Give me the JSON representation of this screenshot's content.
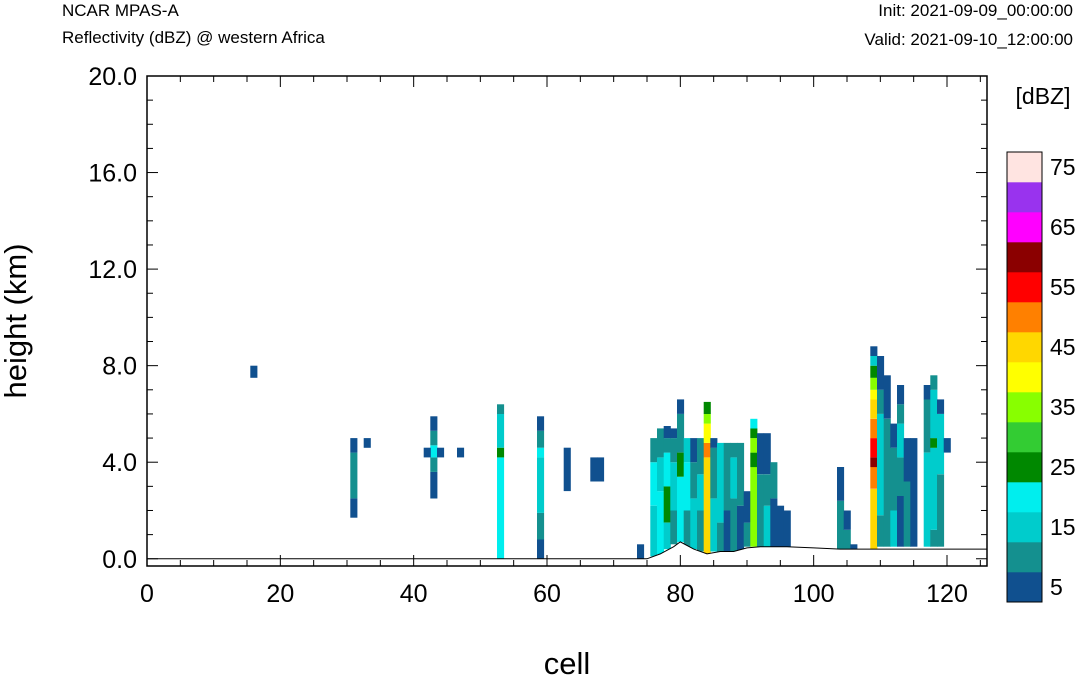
{
  "header": {
    "left_line1": "NCAR MPAS-A",
    "left_line2": "Reflectivity (dBZ) @ western Africa",
    "right_line1": "Init: 2021-09-09_00:00:00",
    "right_line2": "Valid: 2021-09-10_12:00:00"
  },
  "chart_data": {
    "type": "heatmap",
    "title": "Reflectivity (dBZ) @ western Africa",
    "xlabel": "cell",
    "ylabel": "height (km)",
    "xlim": [
      0,
      126
    ],
    "ylim": [
      -0.3,
      20
    ],
    "x_ticks": [
      "0",
      "20",
      "40",
      "60",
      "80",
      "100",
      "120"
    ],
    "x_tick_values": [
      0,
      20,
      40,
      60,
      80,
      100,
      120
    ],
    "y_ticks": [
      "0.0",
      "4.0",
      "8.0",
      "12.0",
      "16.0",
      "20.0"
    ],
    "y_tick_values": [
      0,
      4,
      8,
      12,
      16,
      20
    ],
    "colorbar": {
      "title": "[dBZ]",
      "levels": [
        5,
        10,
        15,
        20,
        25,
        30,
        35,
        40,
        45,
        50,
        55,
        60,
        65,
        70,
        75
      ],
      "labels": [
        "5",
        "15",
        "25",
        "35",
        "45",
        "55",
        "65",
        "75"
      ],
      "colors": [
        "#10508f",
        "#14908f",
        "#00cccc",
        "#00eeee",
        "#008800",
        "#33cc33",
        "#88ff00",
        "#ffff00",
        "#ffd700",
        "#ff8000",
        "#ff0000",
        "#8b0000",
        "#ff00ff",
        "#9933ee",
        "#ffe4e1"
      ]
    },
    "terrain": [
      [
        0,
        0
      ],
      [
        75,
        0
      ],
      [
        77,
        0.2
      ],
      [
        79,
        0.5
      ],
      [
        80,
        0.7
      ],
      [
        82,
        0.4
      ],
      [
        84,
        0.2
      ],
      [
        86,
        0.3
      ],
      [
        88,
        0.3
      ],
      [
        90,
        0.45
      ],
      [
        92,
        0.5
      ],
      [
        96,
        0.5
      ],
      [
        100,
        0.45
      ],
      [
        104,
        0.4
      ],
      [
        108,
        0.4
      ],
      [
        112,
        0.4
      ],
      [
        116,
        0.4
      ],
      [
        120,
        0.4
      ],
      [
        126,
        0.4
      ]
    ],
    "cells": [
      [
        16,
        7.5,
        8.0,
        5
      ],
      [
        31,
        1.7,
        2.5,
        5
      ],
      [
        31,
        2.5,
        3.2,
        10
      ],
      [
        31,
        3.2,
        4.4,
        10
      ],
      [
        31,
        4.4,
        5.0,
        5
      ],
      [
        33,
        4.6,
        5.0,
        5
      ],
      [
        43,
        2.5,
        3.6,
        5
      ],
      [
        43,
        3.6,
        4.2,
        10
      ],
      [
        43,
        4.2,
        4.7,
        20
      ],
      [
        43,
        4.7,
        5.3,
        10
      ],
      [
        43,
        5.3,
        5.9,
        5
      ],
      [
        42,
        4.2,
        4.6,
        5
      ],
      [
        44,
        4.2,
        4.6,
        5
      ],
      [
        47,
        4.2,
        4.6,
        5
      ],
      [
        53,
        0.0,
        4.2,
        20
      ],
      [
        53,
        4.2,
        4.6,
        25
      ],
      [
        53,
        4.6,
        6.0,
        15
      ],
      [
        53,
        6.0,
        6.4,
        10
      ],
      [
        59,
        0.0,
        0.8,
        5
      ],
      [
        59,
        0.8,
        1.9,
        10
      ],
      [
        59,
        1.9,
        4.2,
        15
      ],
      [
        59,
        4.2,
        4.6,
        20
      ],
      [
        59,
        4.6,
        5.3,
        10
      ],
      [
        59,
        5.3,
        5.9,
        5
      ],
      [
        63,
        2.8,
        4.6,
        5
      ],
      [
        67,
        3.2,
        4.2,
        5
      ],
      [
        68,
        3.2,
        4.2,
        5
      ],
      [
        74,
        0.0,
        0.6,
        5
      ],
      [
        76,
        0.1,
        2.2,
        15
      ],
      [
        76,
        2.2,
        4.0,
        20
      ],
      [
        76,
        4.0,
        5.0,
        10
      ],
      [
        77,
        0.2,
        2.8,
        20
      ],
      [
        77,
        2.8,
        4.2,
        15
      ],
      [
        77,
        4.2,
        5.4,
        10
      ],
      [
        78,
        0.4,
        1.5,
        15
      ],
      [
        78,
        1.5,
        3.0,
        25
      ],
      [
        78,
        3.0,
        4.4,
        20
      ],
      [
        78,
        4.4,
        5.0,
        10
      ],
      [
        78,
        5.0,
        5.5,
        5
      ],
      [
        79,
        0.6,
        2.0,
        10
      ],
      [
        79,
        2.0,
        4.0,
        15
      ],
      [
        79,
        4.0,
        5.0,
        10
      ],
      [
        79,
        5.0,
        5.4,
        5
      ],
      [
        80,
        0.7,
        3.4,
        20
      ],
      [
        80,
        3.4,
        4.4,
        25
      ],
      [
        80,
        4.4,
        6.0,
        10
      ],
      [
        80,
        6.0,
        6.6,
        5
      ],
      [
        81,
        0.5,
        2.0,
        10
      ],
      [
        81,
        2.0,
        4.0,
        20
      ],
      [
        81,
        4.0,
        5.0,
        15
      ],
      [
        82,
        0.4,
        2.5,
        15
      ],
      [
        82,
        2.5,
        4.0,
        10
      ],
      [
        82,
        4.0,
        5.0,
        5
      ],
      [
        83,
        0.3,
        2.0,
        10
      ],
      [
        83,
        2.0,
        3.5,
        15
      ],
      [
        83,
        3.5,
        5.0,
        10
      ],
      [
        84,
        0.2,
        4.2,
        45
      ],
      [
        84,
        4.2,
        4.8,
        50
      ],
      [
        84,
        4.8,
        5.6,
        40
      ],
      [
        84,
        5.6,
        6.0,
        35
      ],
      [
        84,
        6.0,
        6.5,
        25
      ],
      [
        85,
        0.3,
        2.5,
        15
      ],
      [
        85,
        2.5,
        4.6,
        10
      ],
      [
        85,
        4.6,
        5.0,
        5
      ],
      [
        86,
        0.3,
        1.5,
        10
      ],
      [
        86,
        1.5,
        4.8,
        15
      ],
      [
        87,
        0.3,
        2.0,
        5
      ],
      [
        87,
        2.0,
        4.8,
        10
      ],
      [
        88,
        0.3,
        2.5,
        10
      ],
      [
        88,
        2.5,
        4.2,
        15
      ],
      [
        88,
        4.2,
        4.8,
        10
      ],
      [
        89,
        0.3,
        2.2,
        5
      ],
      [
        89,
        2.2,
        4.8,
        10
      ],
      [
        90,
        0.5,
        1.5,
        10
      ],
      [
        90,
        1.5,
        2.8,
        5
      ],
      [
        91,
        0.5,
        3.8,
        35
      ],
      [
        91,
        3.8,
        4.4,
        25
      ],
      [
        91,
        4.4,
        5.0,
        35
      ],
      [
        91,
        5.0,
        5.4,
        25
      ],
      [
        91,
        5.4,
        5.8,
        20
      ],
      [
        92,
        0.5,
        3.5,
        10
      ],
      [
        92,
        3.5,
        5.2,
        5
      ],
      [
        93,
        0.5,
        2.2,
        15
      ],
      [
        93,
        2.2,
        3.5,
        10
      ],
      [
        93,
        3.5,
        5.2,
        5
      ],
      [
        94,
        0.5,
        2.5,
        5
      ],
      [
        94,
        2.5,
        4.0,
        10
      ],
      [
        95,
        0.5,
        2.2,
        5
      ],
      [
        96,
        0.5,
        2.0,
        5
      ],
      [
        104,
        0.4,
        2.4,
        10
      ],
      [
        104,
        2.4,
        3.8,
        5
      ],
      [
        105,
        0.4,
        1.2,
        10
      ],
      [
        105,
        1.2,
        2.0,
        5
      ],
      [
        106,
        0.4,
        0.6,
        5
      ],
      [
        109,
        0.4,
        2.9,
        45
      ],
      [
        109,
        2.9,
        3.8,
        50
      ],
      [
        109,
        3.8,
        4.2,
        60
      ],
      [
        109,
        4.2,
        5.0,
        55
      ],
      [
        109,
        5.0,
        5.8,
        50
      ],
      [
        109,
        5.8,
        6.6,
        45
      ],
      [
        109,
        6.6,
        7.0,
        40
      ],
      [
        109,
        7.0,
        7.5,
        35
      ],
      [
        109,
        7.5,
        8.0,
        25
      ],
      [
        109,
        8.0,
        8.4,
        15
      ],
      [
        109,
        8.4,
        8.8,
        5
      ],
      [
        110,
        0.5,
        1.8,
        10
      ],
      [
        110,
        1.8,
        6.0,
        15
      ],
      [
        110,
        6.0,
        7.0,
        10
      ],
      [
        110,
        7.0,
        8.4,
        5
      ],
      [
        111,
        0.5,
        5.8,
        10
      ],
      [
        111,
        5.8,
        7.6,
        5
      ],
      [
        112,
        0.5,
        2.0,
        15
      ],
      [
        112,
        2.0,
        4.6,
        10
      ],
      [
        112,
        4.6,
        5.6,
        5
      ],
      [
        113,
        0.5,
        2.6,
        5
      ],
      [
        113,
        2.6,
        4.2,
        10
      ],
      [
        113,
        4.2,
        5.6,
        15
      ],
      [
        113,
        5.6,
        6.4,
        10
      ],
      [
        113,
        6.4,
        7.2,
        5
      ],
      [
        114,
        0.5,
        3.2,
        10
      ],
      [
        114,
        3.2,
        5.0,
        5
      ],
      [
        115,
        0.5,
        5.0,
        5
      ],
      [
        117,
        0.5,
        4.4,
        15
      ],
      [
        117,
        4.4,
        6.6,
        10
      ],
      [
        117,
        6.6,
        7.2,
        5
      ],
      [
        118,
        0.5,
        1.2,
        10
      ],
      [
        118,
        1.2,
        4.6,
        15
      ],
      [
        118,
        4.6,
        5.0,
        25
      ],
      [
        118,
        5.0,
        7.0,
        15
      ],
      [
        118,
        7.0,
        7.6,
        10
      ],
      [
        119,
        0.5,
        3.5,
        10
      ],
      [
        119,
        3.5,
        6.0,
        15
      ],
      [
        119,
        6.0,
        6.6,
        5
      ],
      [
        120,
        4.4,
        5.0,
        5
      ]
    ]
  }
}
